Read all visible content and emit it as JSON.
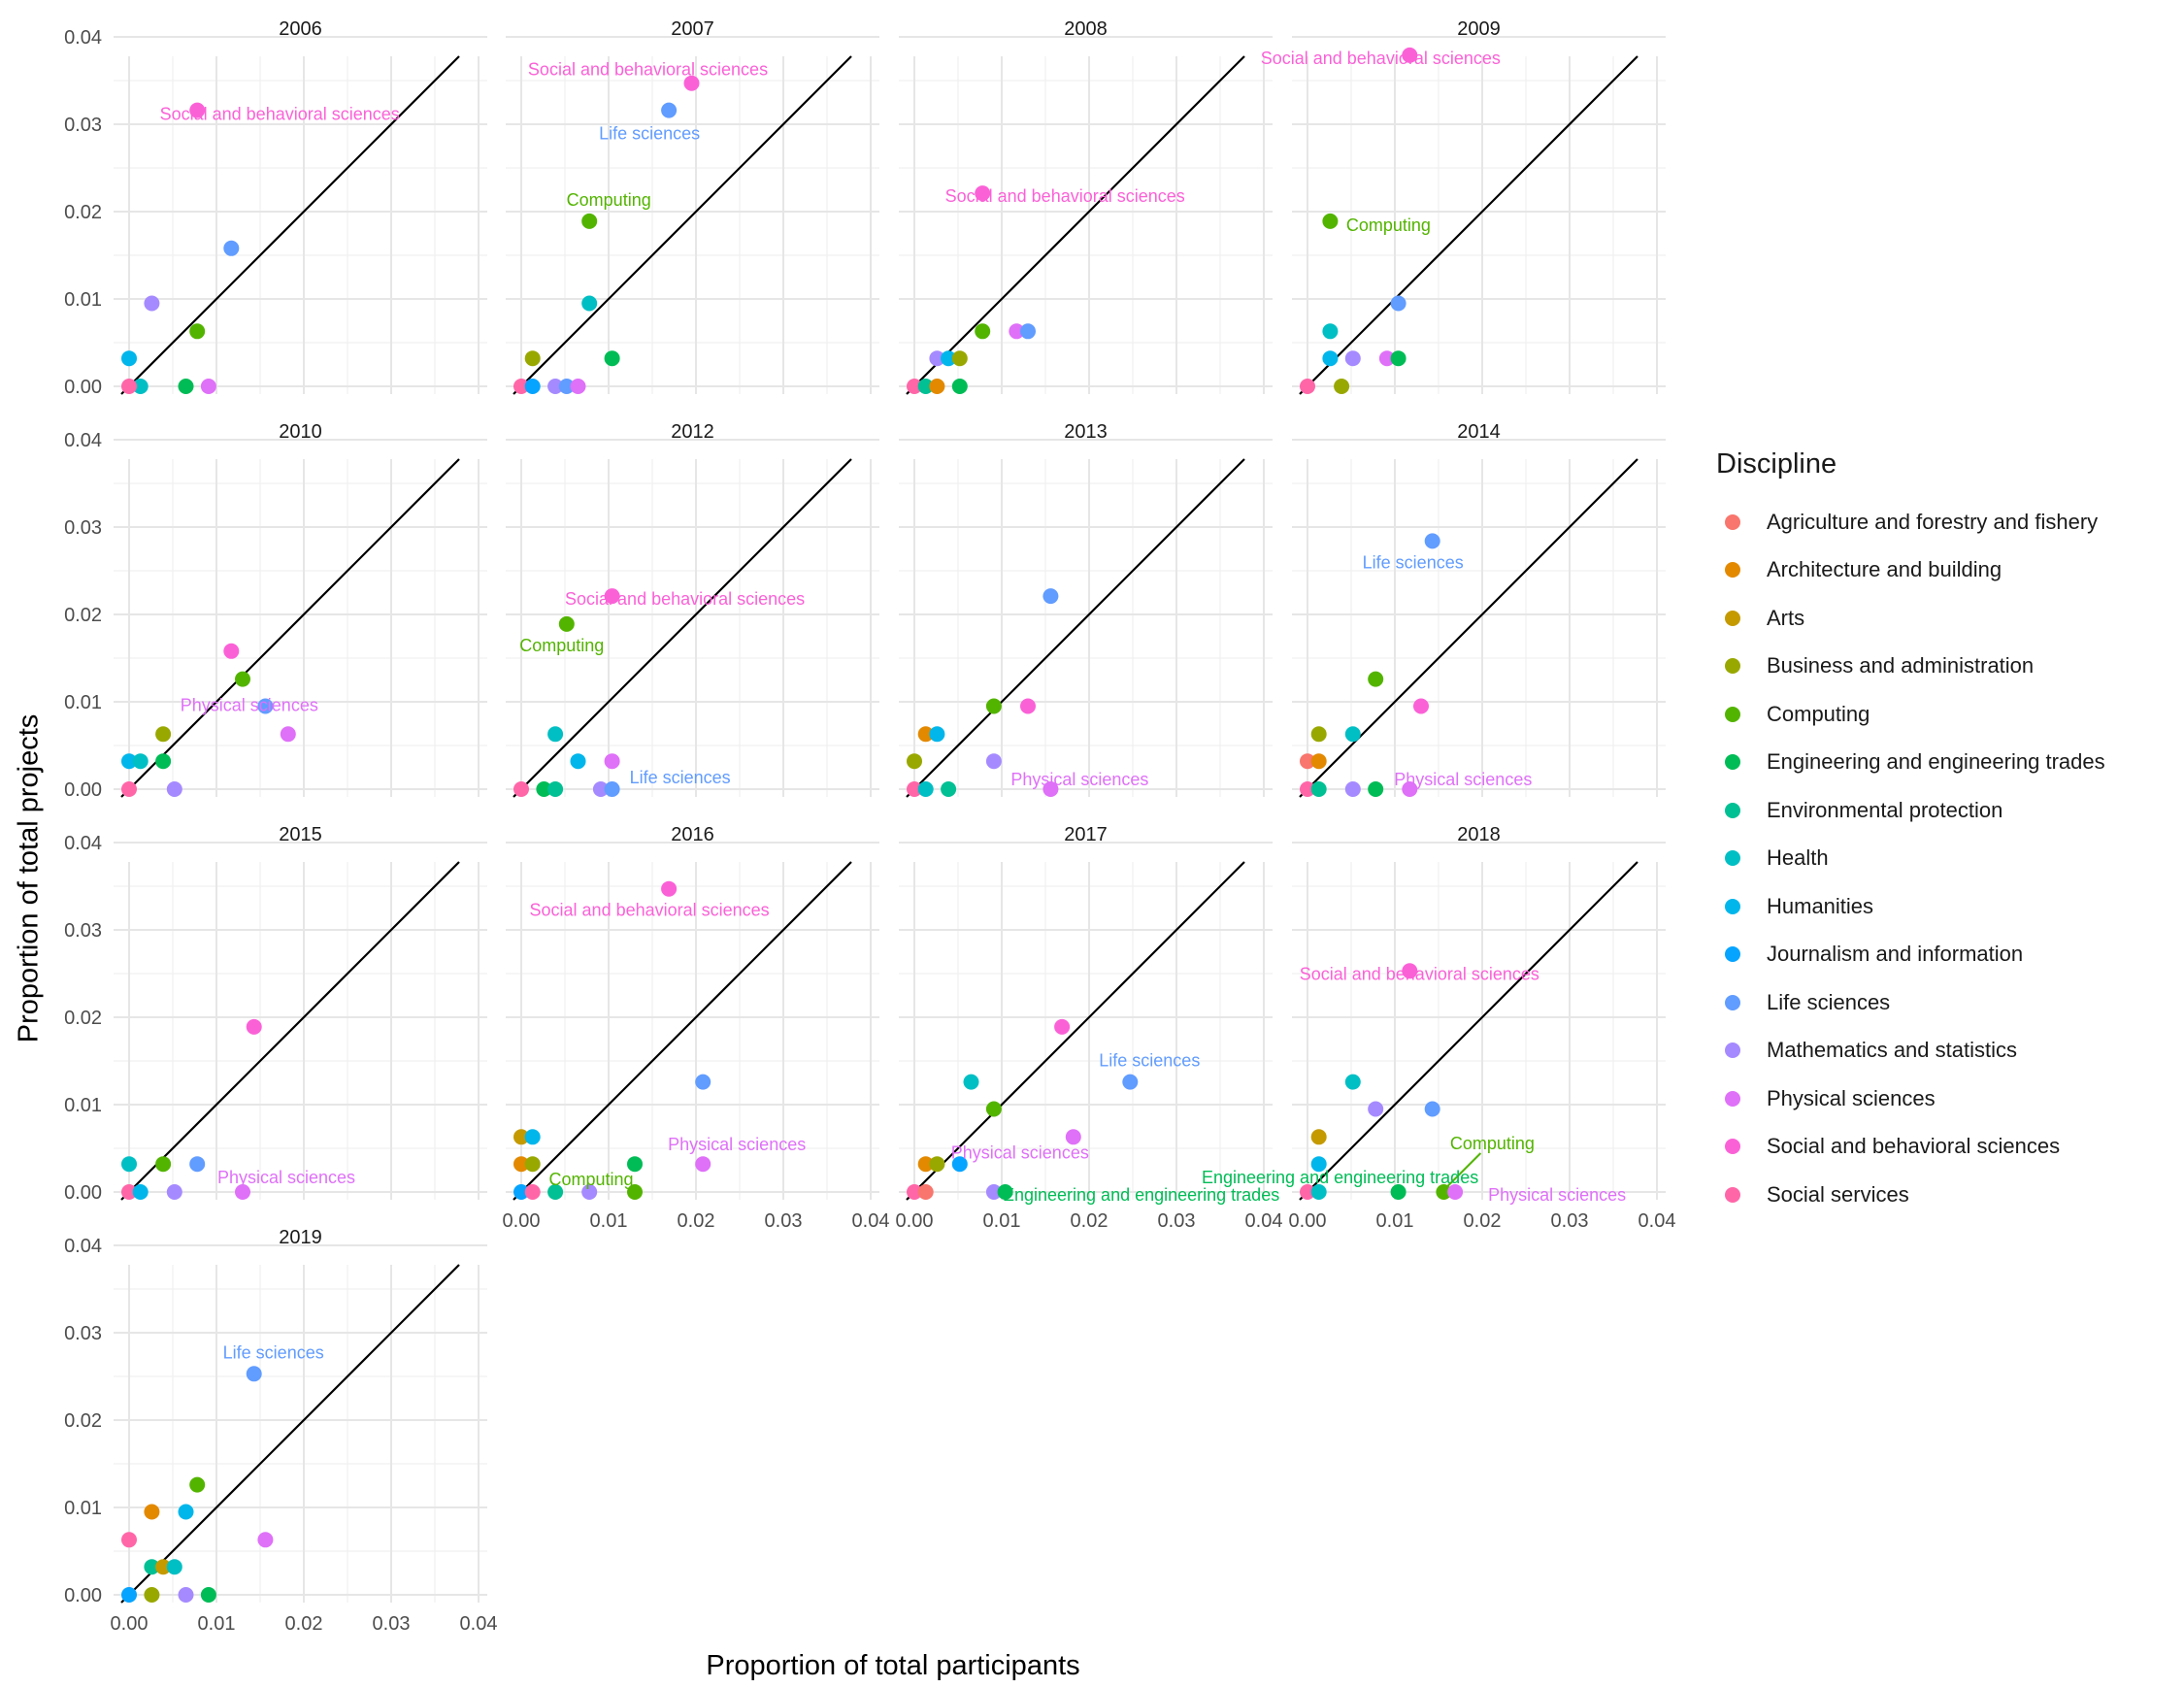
{
  "chart_data": {
    "type": "scatter",
    "xlabel": "Proportion of total participants",
    "ylabel": "Proportion of total projects",
    "xlim": [
      0,
      0.04
    ],
    "ylim": [
      0,
      0.04
    ],
    "ticks": [
      "0.00",
      "0.01",
      "0.02",
      "0.03",
      "0.04"
    ],
    "tick_values": [
      0,
      0.01,
      0.02,
      0.03,
      0.04
    ],
    "reference_line": "y = x",
    "legend_title": "Discipline",
    "legend_position": "right",
    "grid": true,
    "colors": {
      "Agriculture and forestry and fishery": "#F8766D",
      "Architecture and building": "#E38900",
      "Arts": "#C49A00",
      "Business and administration": "#99A800",
      "Computing": "#53B400",
      "Engineering and engineering trades": "#00BC56",
      "Environmental protection": "#00C094",
      "Health": "#00BFC4",
      "Humanities": "#00B6EB",
      "Journalism and information": "#06A4FF",
      "Life sciences": "#619CFF",
      "Mathematics and statistics": "#A58AFF",
      "Physical sciences": "#DF70F8",
      "Social and behavioral sciences": "#FB61D7",
      "Social services": "#FF66A8"
    },
    "disciplines": [
      "Agriculture and forestry and fishery",
      "Architecture and building",
      "Arts",
      "Business and administration",
      "Computing",
      "Engineering and engineering trades",
      "Environmental protection",
      "Health",
      "Humanities",
      "Journalism and information",
      "Life sciences",
      "Mathematics and statistics",
      "Physical sciences",
      "Social and behavioral sciences",
      "Social services"
    ],
    "panels": [
      {
        "year": "2006",
        "points": [
          {
            "d": "Social and behavioral sciences",
            "x": 0.0078,
            "y": 0.0316,
            "label": "Social and behavioral sciences"
          },
          {
            "d": "Life sciences",
            "x": 0.0117,
            "y": 0.0158
          },
          {
            "d": "Mathematics and statistics",
            "x": 0.0026,
            "y": 0.0095
          },
          {
            "d": "Computing",
            "x": 0.0078,
            "y": 0.0063
          },
          {
            "d": "Humanities",
            "x": 0.0,
            "y": 0.0032
          },
          {
            "d": "Health",
            "x": 0.0013,
            "y": 0.0
          },
          {
            "d": "Social services",
            "x": 0.0,
            "y": 0.0
          },
          {
            "d": "Engineering and engineering trades",
            "x": 0.0065,
            "y": 0.0
          },
          {
            "d": "Physical sciences",
            "x": 0.0091,
            "y": 0.0
          }
        ]
      },
      {
        "year": "2007",
        "points": [
          {
            "d": "Social and behavioral sciences",
            "x": 0.0195,
            "y": 0.0347,
            "label": "Social and behavioral sciences"
          },
          {
            "d": "Life sciences",
            "x": 0.0169,
            "y": 0.0316,
            "label": "Life sciences"
          },
          {
            "d": "Computing",
            "x": 0.0078,
            "y": 0.0189,
            "label": "Computing"
          },
          {
            "d": "Health",
            "x": 0.0078,
            "y": 0.0095
          },
          {
            "d": "Business and administration",
            "x": 0.0013,
            "y": 0.0032
          },
          {
            "d": "Engineering and engineering trades",
            "x": 0.0104,
            "y": 0.0032
          },
          {
            "d": "Social services",
            "x": 0.0,
            "y": 0.0
          },
          {
            "d": "Journalism and information",
            "x": 0.0013,
            "y": 0.0
          },
          {
            "d": "Mathematics and statistics",
            "x": 0.0039,
            "y": 0.0
          },
          {
            "d": "Life sciences",
            "x": 0.0052,
            "y": 0.0
          },
          {
            "d": "Physical sciences",
            "x": 0.0065,
            "y": 0.0
          }
        ]
      },
      {
        "year": "2008",
        "points": [
          {
            "d": "Social and behavioral sciences",
            "x": 0.0078,
            "y": 0.0221,
            "label": "Social and behavioral sciences"
          },
          {
            "d": "Computing",
            "x": 0.0078,
            "y": 0.0063
          },
          {
            "d": "Physical sciences",
            "x": 0.0117,
            "y": 0.0063
          },
          {
            "d": "Life sciences",
            "x": 0.013,
            "y": 0.0063
          },
          {
            "d": "Mathematics and statistics",
            "x": 0.0026,
            "y": 0.0032
          },
          {
            "d": "Humanities",
            "x": 0.0039,
            "y": 0.0032
          },
          {
            "d": "Business and administration",
            "x": 0.0052,
            "y": 0.0032
          },
          {
            "d": "Social services",
            "x": 0.0,
            "y": 0.0
          },
          {
            "d": "Environmental protection",
            "x": 0.0013,
            "y": 0.0
          },
          {
            "d": "Architecture and building",
            "x": 0.0026,
            "y": 0.0
          },
          {
            "d": "Engineering and engineering trades",
            "x": 0.0052,
            "y": 0.0
          }
        ]
      },
      {
        "year": "2009",
        "points": [
          {
            "d": "Social and behavioral sciences",
            "x": 0.0117,
            "y": 0.0379,
            "label": "Social and behavioral sciences"
          },
          {
            "d": "Computing",
            "x": 0.0026,
            "y": 0.0189,
            "label": "Computing"
          },
          {
            "d": "Life sciences",
            "x": 0.0104,
            "y": 0.0095
          },
          {
            "d": "Health",
            "x": 0.0026,
            "y": 0.0063
          },
          {
            "d": "Humanities",
            "x": 0.0026,
            "y": 0.0032
          },
          {
            "d": "Mathematics and statistics",
            "x": 0.0052,
            "y": 0.0032
          },
          {
            "d": "Physical sciences",
            "x": 0.0091,
            "y": 0.0032
          },
          {
            "d": "Engineering and engineering trades",
            "x": 0.0104,
            "y": 0.0032
          },
          {
            "d": "Social services",
            "x": 0.0,
            "y": 0.0
          },
          {
            "d": "Business and administration",
            "x": 0.0039,
            "y": 0.0
          }
        ]
      },
      {
        "year": "2010",
        "points": [
          {
            "d": "Social and behavioral sciences",
            "x": 0.0117,
            "y": 0.0158
          },
          {
            "d": "Computing",
            "x": 0.013,
            "y": 0.0126
          },
          {
            "d": "Life sciences",
            "x": 0.0156,
            "y": 0.0095
          },
          {
            "d": "Business and administration",
            "x": 0.0039,
            "y": 0.0063
          },
          {
            "d": "Physical sciences",
            "x": 0.0182,
            "y": 0.0063,
            "label": "Physical sciences"
          },
          {
            "d": "Humanities",
            "x": 0.0,
            "y": 0.0032
          },
          {
            "d": "Health",
            "x": 0.0013,
            "y": 0.0032
          },
          {
            "d": "Engineering and engineering trades",
            "x": 0.0039,
            "y": 0.0032
          },
          {
            "d": "Social services",
            "x": 0.0,
            "y": 0.0
          },
          {
            "d": "Mathematics and statistics",
            "x": 0.0052,
            "y": 0.0
          }
        ]
      },
      {
        "year": "2012",
        "points": [
          {
            "d": "Social and behavioral sciences",
            "x": 0.0104,
            "y": 0.0221,
            "label": "Social and behavioral sciences"
          },
          {
            "d": "Computing",
            "x": 0.0052,
            "y": 0.0189,
            "label": "Computing"
          },
          {
            "d": "Health",
            "x": 0.0039,
            "y": 0.0063
          },
          {
            "d": "Humanities",
            "x": 0.0065,
            "y": 0.0032
          },
          {
            "d": "Physical sciences",
            "x": 0.0104,
            "y": 0.0032
          },
          {
            "d": "Social services",
            "x": 0.0,
            "y": 0.0
          },
          {
            "d": "Engineering and engineering trades",
            "x": 0.0026,
            "y": 0.0
          },
          {
            "d": "Environmental protection",
            "x": 0.0039,
            "y": 0.0
          },
          {
            "d": "Mathematics and statistics",
            "x": 0.0091,
            "y": 0.0
          },
          {
            "d": "Life sciences",
            "x": 0.0104,
            "y": 0.0,
            "label": "Life sciences"
          }
        ]
      },
      {
        "year": "2013",
        "points": [
          {
            "d": "Life sciences",
            "x": 0.0156,
            "y": 0.0221
          },
          {
            "d": "Computing",
            "x": 0.0091,
            "y": 0.0095
          },
          {
            "d": "Social and behavioral sciences",
            "x": 0.013,
            "y": 0.0095
          },
          {
            "d": "Architecture and building",
            "x": 0.0013,
            "y": 0.0063
          },
          {
            "d": "Humanities",
            "x": 0.0026,
            "y": 0.0063
          },
          {
            "d": "Business and administration",
            "x": 0.0,
            "y": 0.0032
          },
          {
            "d": "Mathematics and statistics",
            "x": 0.0091,
            "y": 0.0032
          },
          {
            "d": "Social services",
            "x": 0.0,
            "y": 0.0
          },
          {
            "d": "Health",
            "x": 0.0013,
            "y": 0.0
          },
          {
            "d": "Environmental protection",
            "x": 0.0039,
            "y": 0.0
          },
          {
            "d": "Physical sciences",
            "x": 0.0156,
            "y": 0.0,
            "label": "Physical sciences"
          }
        ]
      },
      {
        "year": "2014",
        "points": [
          {
            "d": "Life sciences",
            "x": 0.0143,
            "y": 0.0284,
            "label": "Life sciences"
          },
          {
            "d": "Computing",
            "x": 0.0078,
            "y": 0.0126
          },
          {
            "d": "Social and behavioral sciences",
            "x": 0.013,
            "y": 0.0095
          },
          {
            "d": "Business and administration",
            "x": 0.0013,
            "y": 0.0063
          },
          {
            "d": "Health",
            "x": 0.0052,
            "y": 0.0063
          },
          {
            "d": "Agriculture and forestry and fishery",
            "x": 0.0,
            "y": 0.0032
          },
          {
            "d": "Architecture and building",
            "x": 0.0013,
            "y": 0.0032
          },
          {
            "d": "Social services",
            "x": 0.0,
            "y": 0.0
          },
          {
            "d": "Environmental protection",
            "x": 0.0013,
            "y": 0.0
          },
          {
            "d": "Mathematics and statistics",
            "x": 0.0052,
            "y": 0.0
          },
          {
            "d": "Engineering and engineering trades",
            "x": 0.0078,
            "y": 0.0
          },
          {
            "d": "Physical sciences",
            "x": 0.0117,
            "y": 0.0,
            "label": "Physical sciences"
          }
        ]
      },
      {
        "year": "2015",
        "points": [
          {
            "d": "Social and behavioral sciences",
            "x": 0.0143,
            "y": 0.0189
          },
          {
            "d": "Life sciences",
            "x": 0.0078,
            "y": 0.0032
          },
          {
            "d": "Health",
            "x": 0.0,
            "y": 0.0032
          },
          {
            "d": "Computing",
            "x": 0.0039,
            "y": 0.0032
          },
          {
            "d": "Social services",
            "x": 0.0,
            "y": 0.0
          },
          {
            "d": "Humanities",
            "x": 0.0013,
            "y": 0.0
          },
          {
            "d": "Mathematics and statistics",
            "x": 0.0052,
            "y": 0.0
          },
          {
            "d": "Physical sciences",
            "x": 0.013,
            "y": 0.0,
            "label": "Physical sciences"
          }
        ]
      },
      {
        "year": "2016",
        "points": [
          {
            "d": "Social and behavioral sciences",
            "x": 0.0169,
            "y": 0.0347,
            "label": "Social and behavioral sciences"
          },
          {
            "d": "Life sciences",
            "x": 0.0208,
            "y": 0.0126
          },
          {
            "d": "Arts",
            "x": 0.0,
            "y": 0.0063
          },
          {
            "d": "Humanities",
            "x": 0.0013,
            "y": 0.0063
          },
          {
            "d": "Architecture and building",
            "x": 0.0,
            "y": 0.0032
          },
          {
            "d": "Business and administration",
            "x": 0.0013,
            "y": 0.0032
          },
          {
            "d": "Engineering and engineering trades",
            "x": 0.013,
            "y": 0.0032
          },
          {
            "d": "Physical sciences",
            "x": 0.0208,
            "y": 0.0032,
            "label": "Physical sciences"
          },
          {
            "d": "Journalism and information",
            "x": 0.0,
            "y": 0.0
          },
          {
            "d": "Social services",
            "x": 0.0013,
            "y": 0.0
          },
          {
            "d": "Environmental protection",
            "x": 0.0039,
            "y": 0.0
          },
          {
            "d": "Mathematics and statistics",
            "x": 0.0078,
            "y": 0.0
          },
          {
            "d": "Computing",
            "x": 0.013,
            "y": 0.0,
            "label": "Computing"
          }
        ]
      },
      {
        "year": "2017",
        "points": [
          {
            "d": "Social and behavioral sciences",
            "x": 0.0169,
            "y": 0.0189
          },
          {
            "d": "Life sciences",
            "x": 0.0247,
            "y": 0.0126,
            "label": "Life sciences"
          },
          {
            "d": "Health",
            "x": 0.0065,
            "y": 0.0126
          },
          {
            "d": "Computing",
            "x": 0.0091,
            "y": 0.0095
          },
          {
            "d": "Physical sciences",
            "x": 0.0182,
            "y": 0.0063,
            "label": "Physical sciences"
          },
          {
            "d": "Architecture and building",
            "x": 0.0013,
            "y": 0.0032
          },
          {
            "d": "Business and administration",
            "x": 0.0026,
            "y": 0.0032
          },
          {
            "d": "Journalism and information",
            "x": 0.0052,
            "y": 0.0032
          },
          {
            "d": "Social services",
            "x": 0.0,
            "y": 0.0
          },
          {
            "d": "Agriculture and forestry and fishery",
            "x": 0.0013,
            "y": 0.0
          },
          {
            "d": "Mathematics and statistics",
            "x": 0.0091,
            "y": 0.0
          },
          {
            "d": "Engineering and engineering trades",
            "x": 0.0104,
            "y": 0.0,
            "label": "Engineering and engineering trades"
          }
        ]
      },
      {
        "year": "2018",
        "points": [
          {
            "d": "Social and behavioral sciences",
            "x": 0.0117,
            "y": 0.0253,
            "label": "Social and behavioral sciences"
          },
          {
            "d": "Health",
            "x": 0.0052,
            "y": 0.0126
          },
          {
            "d": "Mathematics and statistics",
            "x": 0.0078,
            "y": 0.0095
          },
          {
            "d": "Life sciences",
            "x": 0.0143,
            "y": 0.0095
          },
          {
            "d": "Arts",
            "x": 0.0013,
            "y": 0.0063
          },
          {
            "d": "Humanities",
            "x": 0.0013,
            "y": 0.0032
          },
          {
            "d": "Social services",
            "x": 0.0,
            "y": 0.0
          },
          {
            "d": "Health",
            "x": 0.0013,
            "y": 0.0
          },
          {
            "d": "Engineering and engineering trades",
            "x": 0.0104,
            "y": 0.0,
            "label": "Engineering and engineering trades"
          },
          {
            "d": "Computing",
            "x": 0.0156,
            "y": 0.0,
            "label": "Computing"
          },
          {
            "d": "Physical sciences",
            "x": 0.0169,
            "y": 0.0,
            "label": "Physical sciences"
          }
        ]
      },
      {
        "year": "2019",
        "points": [
          {
            "d": "Life sciences",
            "x": 0.0143,
            "y": 0.0253,
            "label": "Life sciences"
          },
          {
            "d": "Computing",
            "x": 0.0078,
            "y": 0.0126
          },
          {
            "d": "Architecture and building",
            "x": 0.0026,
            "y": 0.0095
          },
          {
            "d": "Humanities",
            "x": 0.0065,
            "y": 0.0095
          },
          {
            "d": "Social services",
            "x": 0.0,
            "y": 0.0063
          },
          {
            "d": "Physical sciences",
            "x": 0.0156,
            "y": 0.0063
          },
          {
            "d": "Environmental protection",
            "x": 0.0026,
            "y": 0.0032
          },
          {
            "d": "Arts",
            "x": 0.0039,
            "y": 0.0032
          },
          {
            "d": "Health",
            "x": 0.0052,
            "y": 0.0032
          },
          {
            "d": "Journalism and information",
            "x": 0.0,
            "y": 0.0
          },
          {
            "d": "Business and administration",
            "x": 0.0026,
            "y": 0.0
          },
          {
            "d": "Mathematics and statistics",
            "x": 0.0065,
            "y": 0.0
          },
          {
            "d": "Engineering and engineering trades",
            "x": 0.0091,
            "y": 0.0
          }
        ]
      }
    ]
  }
}
